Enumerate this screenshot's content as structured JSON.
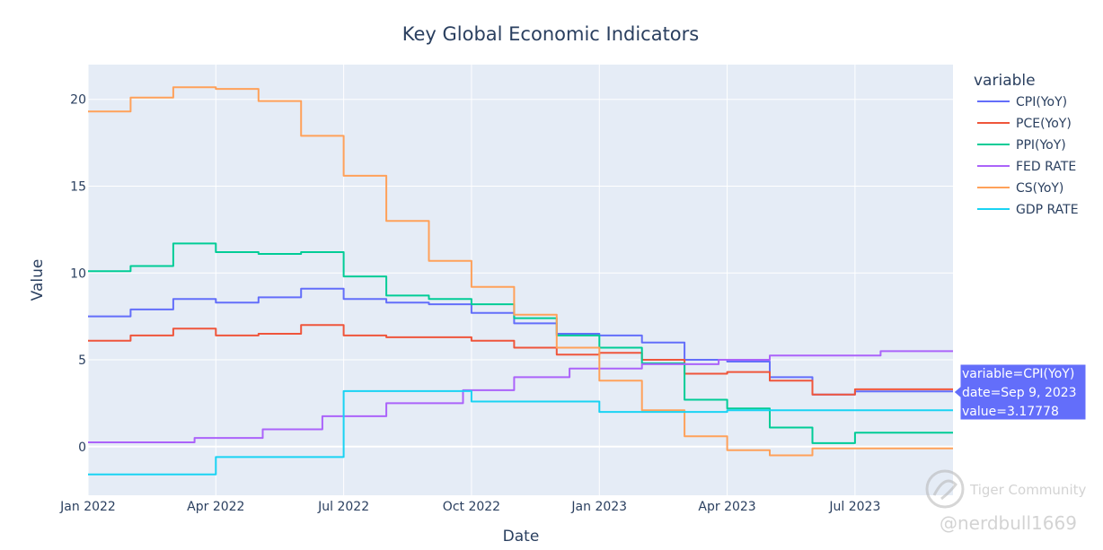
{
  "chart_data": {
    "type": "line",
    "title": "Key Global Economic Indicators",
    "xlabel": "Date",
    "ylabel": "Value",
    "legend_title": "variable",
    "legend_position": "right",
    "ylim": [
      -2.8,
      22
    ],
    "yticks": [
      0,
      5,
      10,
      15,
      20
    ],
    "ytick_labels": [
      "0",
      "5",
      "10",
      "15",
      "20"
    ],
    "xlim_months": [
      0,
      20.3
    ],
    "xticks_months": [
      0,
      3,
      6,
      9,
      12,
      15,
      18
    ],
    "xtick_labels": [
      "Jan 2022",
      "Apr 2022",
      "Jul 2022",
      "Oct 2022",
      "Jan 2023",
      "Apr 2023",
      "Jul 2023"
    ],
    "series": [
      {
        "name": "CPI(YoY)",
        "color": "#636efa",
        "steps": [
          [
            0,
            7.5
          ],
          [
            1,
            7.9
          ],
          [
            2,
            8.5
          ],
          [
            3,
            8.3
          ],
          [
            4,
            8.6
          ],
          [
            5,
            9.1
          ],
          [
            6,
            8.5
          ],
          [
            7,
            8.3
          ],
          [
            8,
            8.2
          ],
          [
            9,
            7.7
          ],
          [
            10,
            7.1
          ],
          [
            11,
            6.5
          ],
          [
            12,
            6.4
          ],
          [
            13,
            6.0
          ],
          [
            14,
            5.0
          ],
          [
            15,
            4.9
          ],
          [
            16,
            4.0
          ],
          [
            17,
            3.0
          ],
          [
            18,
            3.18
          ]
        ]
      },
      {
        "name": "PCE(YoY)",
        "color": "#ef553b",
        "steps": [
          [
            0,
            6.1
          ],
          [
            1,
            6.4
          ],
          [
            2,
            6.8
          ],
          [
            3,
            6.4
          ],
          [
            4,
            6.5
          ],
          [
            5,
            7.0
          ],
          [
            6,
            6.4
          ],
          [
            7,
            6.3
          ],
          [
            8,
            6.3
          ],
          [
            9,
            6.1
          ],
          [
            10,
            5.7
          ],
          [
            11,
            5.3
          ],
          [
            12,
            5.4
          ],
          [
            13,
            5.0
          ],
          [
            14,
            4.2
          ],
          [
            15,
            4.3
          ],
          [
            16,
            3.8
          ],
          [
            17,
            3.0
          ],
          [
            18,
            3.3
          ]
        ]
      },
      {
        "name": "PPI(YoY)",
        "color": "#00cc96",
        "steps": [
          [
            0,
            10.1
          ],
          [
            1,
            10.4
          ],
          [
            2,
            11.7
          ],
          [
            3,
            11.2
          ],
          [
            4,
            11.1
          ],
          [
            5,
            11.2
          ],
          [
            6,
            9.8
          ],
          [
            7,
            8.7
          ],
          [
            8,
            8.5
          ],
          [
            9,
            8.2
          ],
          [
            10,
            7.4
          ],
          [
            11,
            6.4
          ],
          [
            12,
            5.7
          ],
          [
            13,
            4.8
          ],
          [
            14,
            2.7
          ],
          [
            15,
            2.2
          ],
          [
            16,
            1.1
          ],
          [
            17,
            0.2
          ],
          [
            18,
            0.8
          ]
        ]
      },
      {
        "name": "FED RATE",
        "color": "#ab63fa",
        "steps": [
          [
            0,
            0.25
          ],
          [
            2.5,
            0.5
          ],
          [
            4.1,
            1.0
          ],
          [
            5.5,
            1.75
          ],
          [
            7,
            2.5
          ],
          [
            8.8,
            3.25
          ],
          [
            10,
            4.0
          ],
          [
            11.3,
            4.5
          ],
          [
            13,
            4.75
          ],
          [
            14.8,
            5.0
          ],
          [
            16,
            5.25
          ],
          [
            18.6,
            5.5
          ]
        ]
      },
      {
        "name": "CS(YoY)",
        "color": "#ffa15a",
        "steps": [
          [
            0,
            19.3
          ],
          [
            1,
            20.1
          ],
          [
            2,
            20.7
          ],
          [
            3,
            20.6
          ],
          [
            4,
            19.9
          ],
          [
            5,
            17.9
          ],
          [
            6,
            15.6
          ],
          [
            7,
            13.0
          ],
          [
            8,
            10.7
          ],
          [
            9,
            9.2
          ],
          [
            10,
            7.6
          ],
          [
            11,
            5.7
          ],
          [
            12,
            3.8
          ],
          [
            13,
            2.1
          ],
          [
            14,
            0.6
          ],
          [
            15,
            -0.2
          ],
          [
            16,
            -0.5
          ],
          [
            17,
            -0.1
          ],
          [
            18,
            -0.1
          ]
        ]
      },
      {
        "name": "GDP RATE",
        "color": "#19d3f3",
        "steps": [
          [
            0,
            -1.6
          ],
          [
            3,
            -0.6
          ],
          [
            6,
            3.2
          ],
          [
            9,
            2.6
          ],
          [
            12,
            2.0
          ],
          [
            15,
            2.1
          ],
          [
            18,
            2.1
          ]
        ]
      }
    ]
  },
  "hover": {
    "line1": "variable=CPI(YoY)",
    "line2": "date=Sep 9, 2023",
    "line3": "value=3.17778",
    "color": "#636efa"
  },
  "watermark": {
    "brand": "Tiger Community",
    "handle": "@nerdbull1669"
  }
}
